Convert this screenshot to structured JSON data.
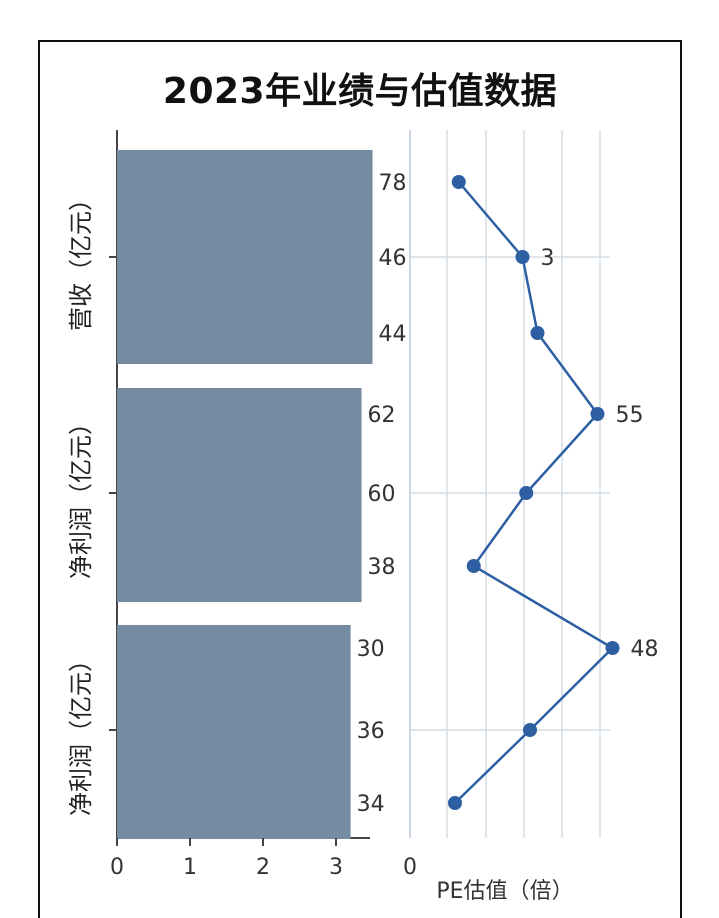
{
  "chart_data": {
    "type": "bar+line",
    "title": "2023年业绩与估值数据",
    "bar_panel": {
      "categories": [
        "营收（亿元）",
        "净利润（亿元）",
        "净利润（亿元）"
      ],
      "values": [
        3.5,
        3.35,
        3.2
      ],
      "xlim": [
        0,
        3.5
      ],
      "xticks": [
        "0",
        "1",
        "2",
        "3"
      ],
      "color": "#758ba1"
    },
    "line_panel": {
      "xlabel": "PE估值（倍）",
      "xticks": [
        "0"
      ],
      "points": [
        {
          "x": 0.65,
          "label": "78"
        },
        {
          "x": 1.5,
          "label": "46"
        },
        {
          "x": 1.7,
          "label": "44"
        },
        {
          "x": 2.5,
          "label": "62"
        },
        {
          "x": 1.55,
          "label": "60"
        },
        {
          "x": 0.85,
          "label": "38"
        },
        {
          "x": 2.7,
          "label": "30"
        },
        {
          "x": 1.6,
          "label": "36"
        },
        {
          "x": 0.6,
          "label": "34"
        }
      ],
      "annotations": [
        "3",
        "55",
        "48"
      ],
      "color": "#2e5fa3",
      "grid": true
    }
  }
}
